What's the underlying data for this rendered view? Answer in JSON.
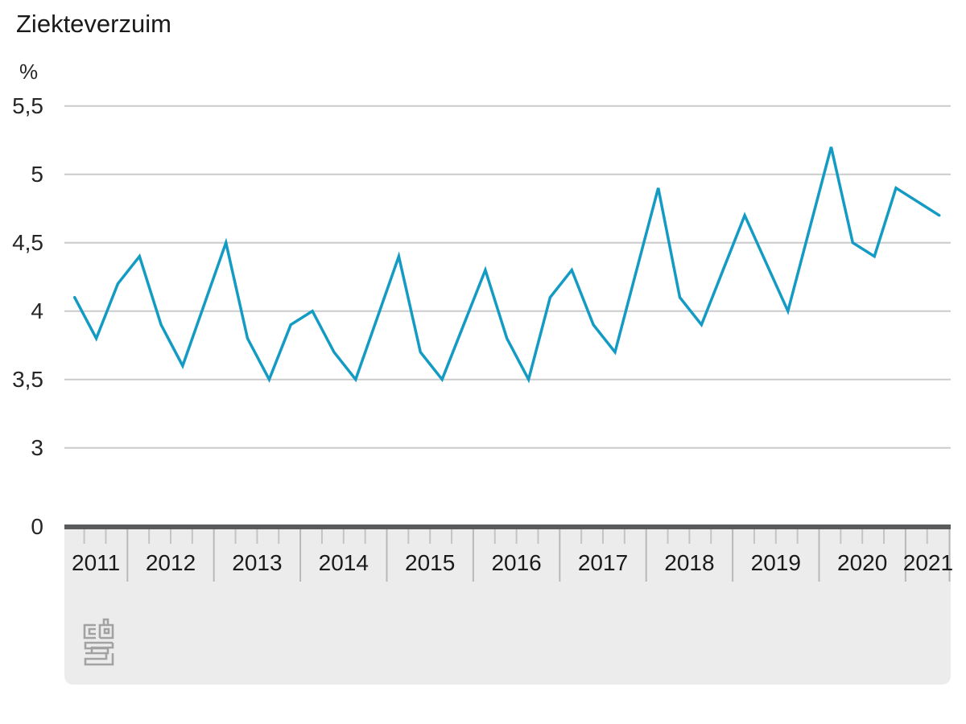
{
  "title": "Ziekteverzuim",
  "y_axis": {
    "unit": "%",
    "ticks": [
      {
        "label": "5,5",
        "value": 5.5
      },
      {
        "label": "5",
        "value": 5.0
      },
      {
        "label": "4,5",
        "value": 4.5
      },
      {
        "label": "4",
        "value": 4.0
      },
      {
        "label": "3,5",
        "value": 3.5
      },
      {
        "label": "3",
        "value": 3.0
      },
      {
        "label": "0",
        "value": 0
      }
    ],
    "axis_break": "scale jumps from 3 to 0 at the baseline"
  },
  "x_axis": {
    "years": [
      "2011",
      "2012",
      "2013",
      "2014",
      "2015",
      "2016",
      "2017",
      "2018",
      "2019",
      "2020",
      "2021"
    ],
    "tick_unit": "quarter"
  },
  "branding": {
    "logo": "cbs-logo"
  },
  "colors": {
    "line": "#149bc4",
    "gridline": "#cbcbcb",
    "axis_bar": "#5a5b5d",
    "axis_band": "#ececec",
    "quarter_tick": "#c4c4c4",
    "year_separator": "#b9b9b9",
    "text": "#262626",
    "logo": "#a2a2a2"
  },
  "chart_data": {
    "type": "line",
    "title": "Ziekteverzuim",
    "ylabel": "%",
    "xlabel": "",
    "x_range": "2011 Q2 - 2021 Q2",
    "ylim": [
      3.0,
      5.5
    ],
    "baseline_label": "0",
    "grid": "horizontal only",
    "legend": "none",
    "y_tick_labels": [
      "5,5",
      "5",
      "4,5",
      "4",
      "3,5",
      "3",
      "0"
    ],
    "series": [
      {
        "name": "Ziekteverzuim",
        "color": "#149bc4",
        "points": [
          {
            "year": 2011,
            "quarter": 2,
            "value": 4.1
          },
          {
            "year": 2011,
            "quarter": 3,
            "value": 3.8
          },
          {
            "year": 2011,
            "quarter": 4,
            "value": 4.2
          },
          {
            "year": 2012,
            "quarter": 1,
            "value": 4.4
          },
          {
            "year": 2012,
            "quarter": 2,
            "value": 3.9
          },
          {
            "year": 2012,
            "quarter": 3,
            "value": 3.6
          },
          {
            "year": 2012,
            "quarter": 4,
            "value": 4.05
          },
          {
            "year": 2013,
            "quarter": 1,
            "value": 4.5
          },
          {
            "year": 2013,
            "quarter": 2,
            "value": 3.8
          },
          {
            "year": 2013,
            "quarter": 3,
            "value": 3.5
          },
          {
            "year": 2013,
            "quarter": 4,
            "value": 3.9
          },
          {
            "year": 2014,
            "quarter": 1,
            "value": 4.0
          },
          {
            "year": 2014,
            "quarter": 2,
            "value": 3.7
          },
          {
            "year": 2014,
            "quarter": 3,
            "value": 3.5
          },
          {
            "year": 2014,
            "quarter": 4,
            "value": 3.95
          },
          {
            "year": 2015,
            "quarter": 1,
            "value": 4.4
          },
          {
            "year": 2015,
            "quarter": 2,
            "value": 3.7
          },
          {
            "year": 2015,
            "quarter": 3,
            "value": 3.5
          },
          {
            "year": 2015,
            "quarter": 4,
            "value": 3.9
          },
          {
            "year": 2016,
            "quarter": 1,
            "value": 4.3
          },
          {
            "year": 2016,
            "quarter": 2,
            "value": 3.8
          },
          {
            "year": 2016,
            "quarter": 3,
            "value": 3.5
          },
          {
            "year": 2016,
            "quarter": 4,
            "value": 4.1
          },
          {
            "year": 2017,
            "quarter": 1,
            "value": 4.3
          },
          {
            "year": 2017,
            "quarter": 2,
            "value": 3.9
          },
          {
            "year": 2017,
            "quarter": 3,
            "value": 3.7
          },
          {
            "year": 2017,
            "quarter": 4,
            "value": 4.3
          },
          {
            "year": 2018,
            "quarter": 1,
            "value": 4.9
          },
          {
            "year": 2018,
            "quarter": 2,
            "value": 4.1
          },
          {
            "year": 2018,
            "quarter": 3,
            "value": 3.9
          },
          {
            "year": 2018,
            "quarter": 4,
            "value": 4.3
          },
          {
            "year": 2019,
            "quarter": 1,
            "value": 4.7
          },
          {
            "year": 2019,
            "quarter": 2,
            "value": 4.35
          },
          {
            "year": 2019,
            "quarter": 3,
            "value": 4.0
          },
          {
            "year": 2019,
            "quarter": 4,
            "value": 4.6
          },
          {
            "year": 2020,
            "quarter": 1,
            "value": 5.2
          },
          {
            "year": 2020,
            "quarter": 2,
            "value": 4.5
          },
          {
            "year": 2020,
            "quarter": 3,
            "value": 4.4
          },
          {
            "year": 2020,
            "quarter": 4,
            "value": 4.9
          },
          {
            "year": 2021,
            "quarter": 1,
            "value": 4.8
          },
          {
            "year": 2021,
            "quarter": 2,
            "value": 4.7
          }
        ]
      }
    ]
  }
}
